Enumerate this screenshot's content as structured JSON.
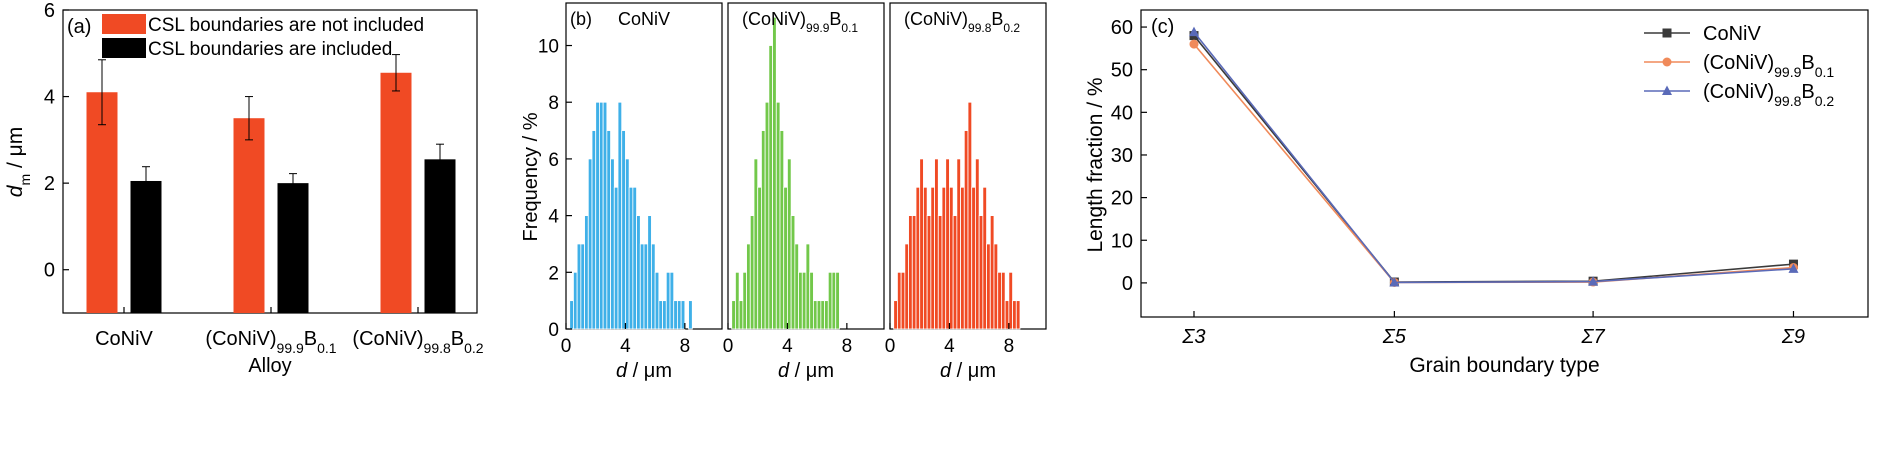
{
  "chart_data": [
    {
      "id": "a",
      "type": "bar",
      "panel_label": "(a)",
      "xlabel": "Alloy",
      "ylabel": "d",
      "ylabel_sub": "m",
      "ylabel_unit": " / μm",
      "ylim": [
        -1,
        6
      ],
      "yticks": [
        0,
        2,
        4,
        6
      ],
      "categories": [
        {
          "main": "CoNiV",
          "sub": ""
        },
        {
          "main": "(CoNiV)",
          "sub": "99.9",
          "tail": "B",
          "tail_sub": "0.1"
        },
        {
          "main": "(CoNiV)",
          "sub": "99.8",
          "tail": "B",
          "tail_sub": "0.2"
        }
      ],
      "series": [
        {
          "name": "CSL boundaries are not included",
          "color": "#f04a24",
          "values": [
            4.1,
            3.5,
            4.55
          ],
          "errors": [
            0.75,
            0.5,
            0.42
          ]
        },
        {
          "name": "CSL boundaries are included",
          "color": "#000000",
          "values": [
            2.05,
            2.0,
            2.55
          ],
          "errors": [
            0.33,
            0.22,
            0.35
          ]
        }
      ],
      "legend": "top-right"
    },
    {
      "id": "b",
      "type": "bar",
      "panel_label": "(b)",
      "ylabel": "Frequency / %",
      "xlabel": "d",
      "xlabel_unit": " / μm",
      "ylim": [
        0,
        11.5
      ],
      "yticks": [
        0,
        2,
        4,
        6,
        8,
        10
      ],
      "xlim": [
        0,
        10.5
      ],
      "xticks": [
        0,
        4,
        8
      ],
      "bin_width": 0.25,
      "panels": [
        {
          "title": "CoNiV",
          "title_sub": "",
          "title_tail": "",
          "title_tail_sub": "",
          "color": "#3fb0e8",
          "bins_start": 0.25,
          "frequencies": [
            1,
            2,
            3,
            3,
            4,
            6,
            7,
            8,
            8,
            8,
            7,
            6,
            5,
            8,
            7,
            6,
            5,
            5,
            4,
            3,
            3,
            4,
            3,
            2,
            1,
            1,
            2,
            2,
            1,
            1,
            1,
            0,
            1
          ]
        },
        {
          "title": "(CoNiV)",
          "title_sub": "99.9",
          "title_tail": "B",
          "title_tail_sub": "0.1",
          "color": "#72c84a",
          "bins_start": 0.25,
          "frequencies": [
            1,
            2,
            1,
            2,
            3,
            4,
            6,
            5,
            7,
            8,
            10,
            11,
            8,
            7,
            5,
            6,
            4,
            3,
            2,
            2,
            3,
            2,
            1,
            1,
            1,
            1,
            2,
            2,
            2
          ]
        },
        {
          "title": "(CoNiV)",
          "title_sub": "99.8",
          "title_tail": "B",
          "title_tail_sub": "0.2",
          "color": "#f04a24",
          "bins_start": 0.25,
          "frequencies": [
            1,
            2,
            2,
            3,
            4,
            4,
            5,
            6,
            5,
            4,
            5,
            6,
            4,
            5,
            6,
            5,
            4,
            6,
            5,
            7,
            8,
            5,
            6,
            4,
            5,
            3,
            4,
            3,
            2,
            2,
            1,
            2,
            1,
            1
          ]
        }
      ]
    },
    {
      "id": "c",
      "type": "line",
      "panel_label": "(c)",
      "xlabel": "Grain boundary type",
      "ylabel": "Length fraction / %",
      "categories": [
        "Σ3",
        "Σ5",
        "Σ7",
        "Σ9"
      ],
      "ylim": [
        -8,
        64
      ],
      "yticks": [
        0,
        10,
        20,
        30,
        40,
        50,
        60
      ],
      "series": [
        {
          "name": "CoNiV",
          "name_sub": "",
          "name_tail": "",
          "name_tail_sub": "",
          "color": "#3a3a3a",
          "marker": "square",
          "values": [
            58.0,
            0.2,
            0.4,
            4.4
          ]
        },
        {
          "name": "(CoNiV)",
          "name_sub": "99.9",
          "name_tail": "B",
          "name_tail_sub": "0.1",
          "color": "#f08a5a",
          "marker": "circle",
          "values": [
            56.0,
            0.1,
            0.2,
            3.6
          ]
        },
        {
          "name": "(CoNiV)",
          "name_sub": "99.8",
          "name_tail": "B",
          "name_tail_sub": "0.2",
          "color": "#5a6ab8",
          "marker": "triangle",
          "values": [
            58.8,
            0.1,
            0.3,
            3.3
          ]
        }
      ],
      "legend": "top-right"
    }
  ]
}
